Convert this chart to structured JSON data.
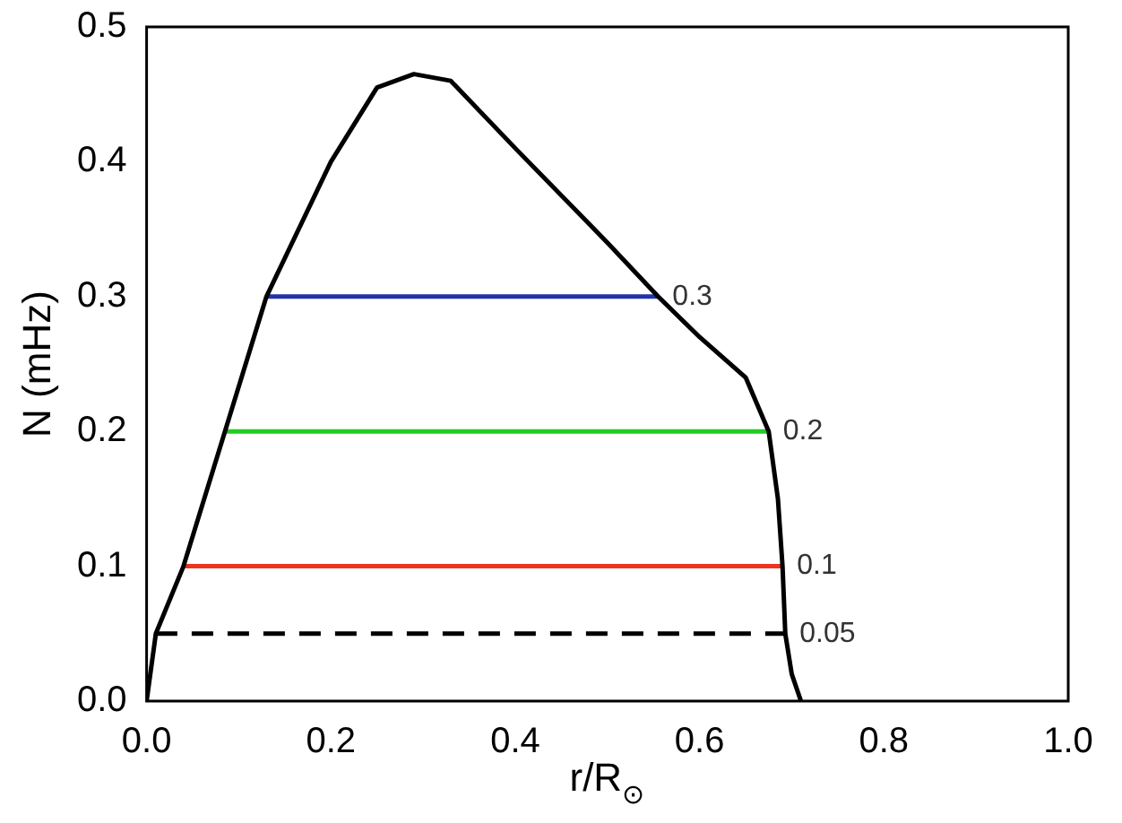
{
  "chart_data": {
    "type": "line",
    "xlabel": "r/R$_{⊙}$",
    "ylabel": "N (mHz)",
    "xlim": [
      0,
      1
    ],
    "xticks": [
      {
        "value": 0,
        "label": "0.0"
      },
      0.2,
      0.4,
      0.6,
      0.8,
      {
        "value": 1,
        "label": "1.0"
      }
    ],
    "ylim": [
      0,
      0.5
    ],
    "yticks": [
      {
        "value": 0,
        "label": "0.0"
      },
      0.1,
      0.2,
      0.3,
      0.4,
      0.5
    ],
    "grid": false,
    "legend": false,
    "marker": "none",
    "series": [
      {
        "color": "#000000",
        "x": [
          0,
          0.01,
          0.04,
          0.085,
          0.13,
          0.2,
          0.25,
          0.29,
          0.33,
          0.4,
          0.5,
          0.555,
          0.6,
          0.65,
          0.675,
          0.685,
          0.69,
          0.693,
          0.7,
          0.71
        ],
        "values": [
          0,
          0.05,
          0.1,
          0.2,
          0.3,
          0.4,
          0.455,
          0.465,
          0.46,
          0.41,
          0.34,
          0.3,
          0.27,
          0.24,
          0.2,
          0.15,
          0.1,
          0.05,
          0.02,
          0
        ]
      },
      {
        "name": "0.3",
        "color": "#2233aa",
        "x": [
          0.13,
          0.555
        ],
        "values": [
          0.3,
          0.3
        ]
      },
      {
        "name": "0.2",
        "color": "#22cc22",
        "x": [
          0.085,
          0.675
        ],
        "values": [
          0.2,
          0.2
        ]
      },
      {
        "name": "0.1",
        "color": "#ee3322",
        "x": [
          0.04,
          0.69
        ],
        "values": [
          0.1,
          0.1
        ]
      },
      {
        "name": "0.05",
        "color": "#000000",
        "line_style": "dashed",
        "x": [
          0.01,
          0.693
        ],
        "values": [
          0.05,
          0.05
        ]
      }
    ]
  }
}
